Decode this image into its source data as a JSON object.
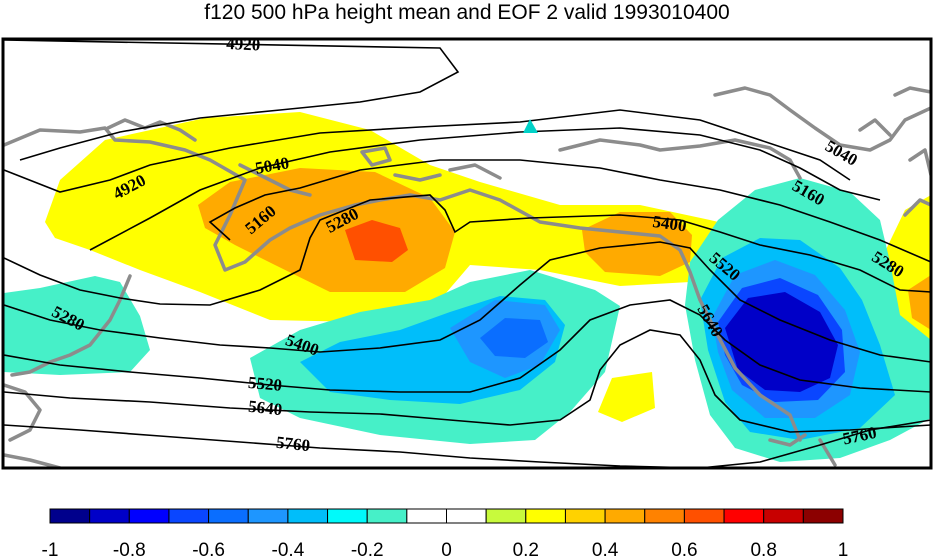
{
  "title": "f120 500 hPa height mean and EOF 2 valid 1993010400",
  "contour_labels": [
    "4920",
    "4920",
    "5040",
    "5040",
    "5160",
    "5160",
    "5280",
    "5280",
    "5280",
    "5400",
    "5400",
    "5520",
    "5520",
    "5640",
    "5640",
    "5760",
    "5760"
  ],
  "colorbar": {
    "min": -1,
    "max": 1,
    "step": 0.1,
    "colors": [
      "#00008c",
      "#0000c8",
      "#0000ff",
      "#0a46ff",
      "#0a6eff",
      "#1e96ff",
      "#00befa",
      "#00fafa",
      "#46f0c8",
      "#ffffff",
      "#ffffff",
      "#c8fa3c",
      "#ffff00",
      "#ffd200",
      "#ffaa00",
      "#ff8200",
      "#ff5000",
      "#ff0000",
      "#c80000",
      "#8c0000"
    ],
    "tick_labels": [
      "-1",
      "-0.8",
      "-0.6",
      "-0.4",
      "-0.2",
      "0",
      "0.2",
      "0.4",
      "0.6",
      "0.8",
      "1"
    ]
  },
  "colors": {
    "coastline": "#8c8c8c",
    "contour": "#000000",
    "frame": "#000000",
    "marker": "#00d2c8"
  }
}
